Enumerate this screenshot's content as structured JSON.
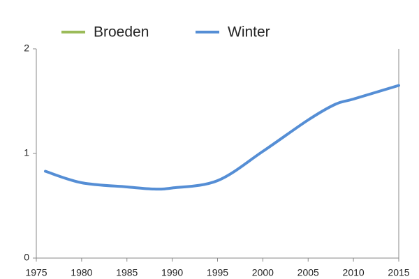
{
  "chart_data": {
    "type": "line",
    "x": [
      1976,
      1980,
      1985,
      1988,
      1990,
      1995,
      2000,
      2005,
      2008,
      2010,
      2015
    ],
    "series": [
      {
        "name": "Broeden",
        "color": "#9bbb59",
        "values": [
          null,
          null,
          null,
          null,
          null,
          null,
          null,
          null,
          null,
          null,
          null
        ]
      },
      {
        "name": "Winter",
        "color": "#558ed5",
        "values": [
          0.83,
          0.72,
          0.68,
          0.66,
          0.67,
          0.74,
          1.02,
          1.32,
          1.47,
          1.52,
          1.65
        ]
      }
    ],
    "xlim": [
      1975,
      2015
    ],
    "xticks": [
      1975,
      1980,
      1985,
      1990,
      1995,
      2000,
      2005,
      2010,
      2015
    ],
    "ylim": [
      0,
      2
    ],
    "yticks": [
      0,
      1,
      2
    ],
    "grid": false,
    "legend": "top"
  }
}
